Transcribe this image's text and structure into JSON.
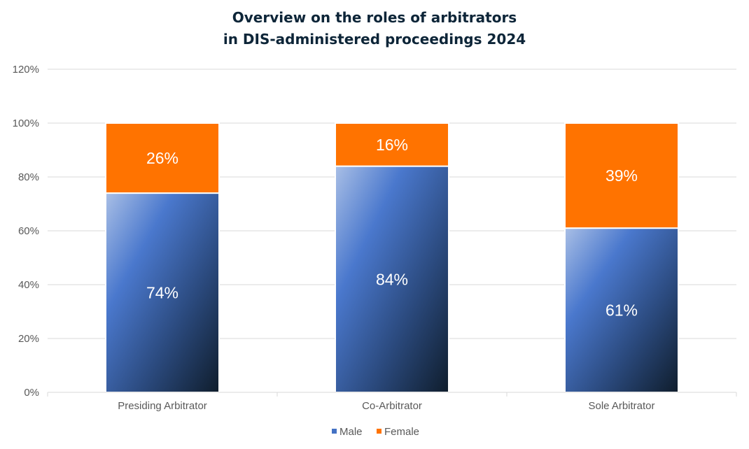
{
  "chart_data": {
    "type": "bar",
    "stacked": true,
    "title_lines": [
      "Overview on the roles of arbitrators",
      "in DIS-administered proceedings 2024"
    ],
    "categories": [
      "Presiding Arbitrator",
      "Co-Arbitrator",
      "Sole Arbitrator"
    ],
    "series": [
      {
        "name": "Male",
        "values": [
          74,
          84,
          61
        ],
        "labels": [
          "74%",
          "84%",
          "61%"
        ],
        "color": "#4472C4"
      },
      {
        "name": "Female",
        "values": [
          26,
          16,
          39
        ],
        "labels": [
          "26%",
          "16%",
          "39%"
        ],
        "color": "#FF7300"
      }
    ],
    "ylim": [
      0,
      120
    ],
    "y_ticks": [
      "0%",
      "20%",
      "40%",
      "60%",
      "80%",
      "100%",
      "120%"
    ],
    "grid": true,
    "legend_position": "bottom"
  }
}
